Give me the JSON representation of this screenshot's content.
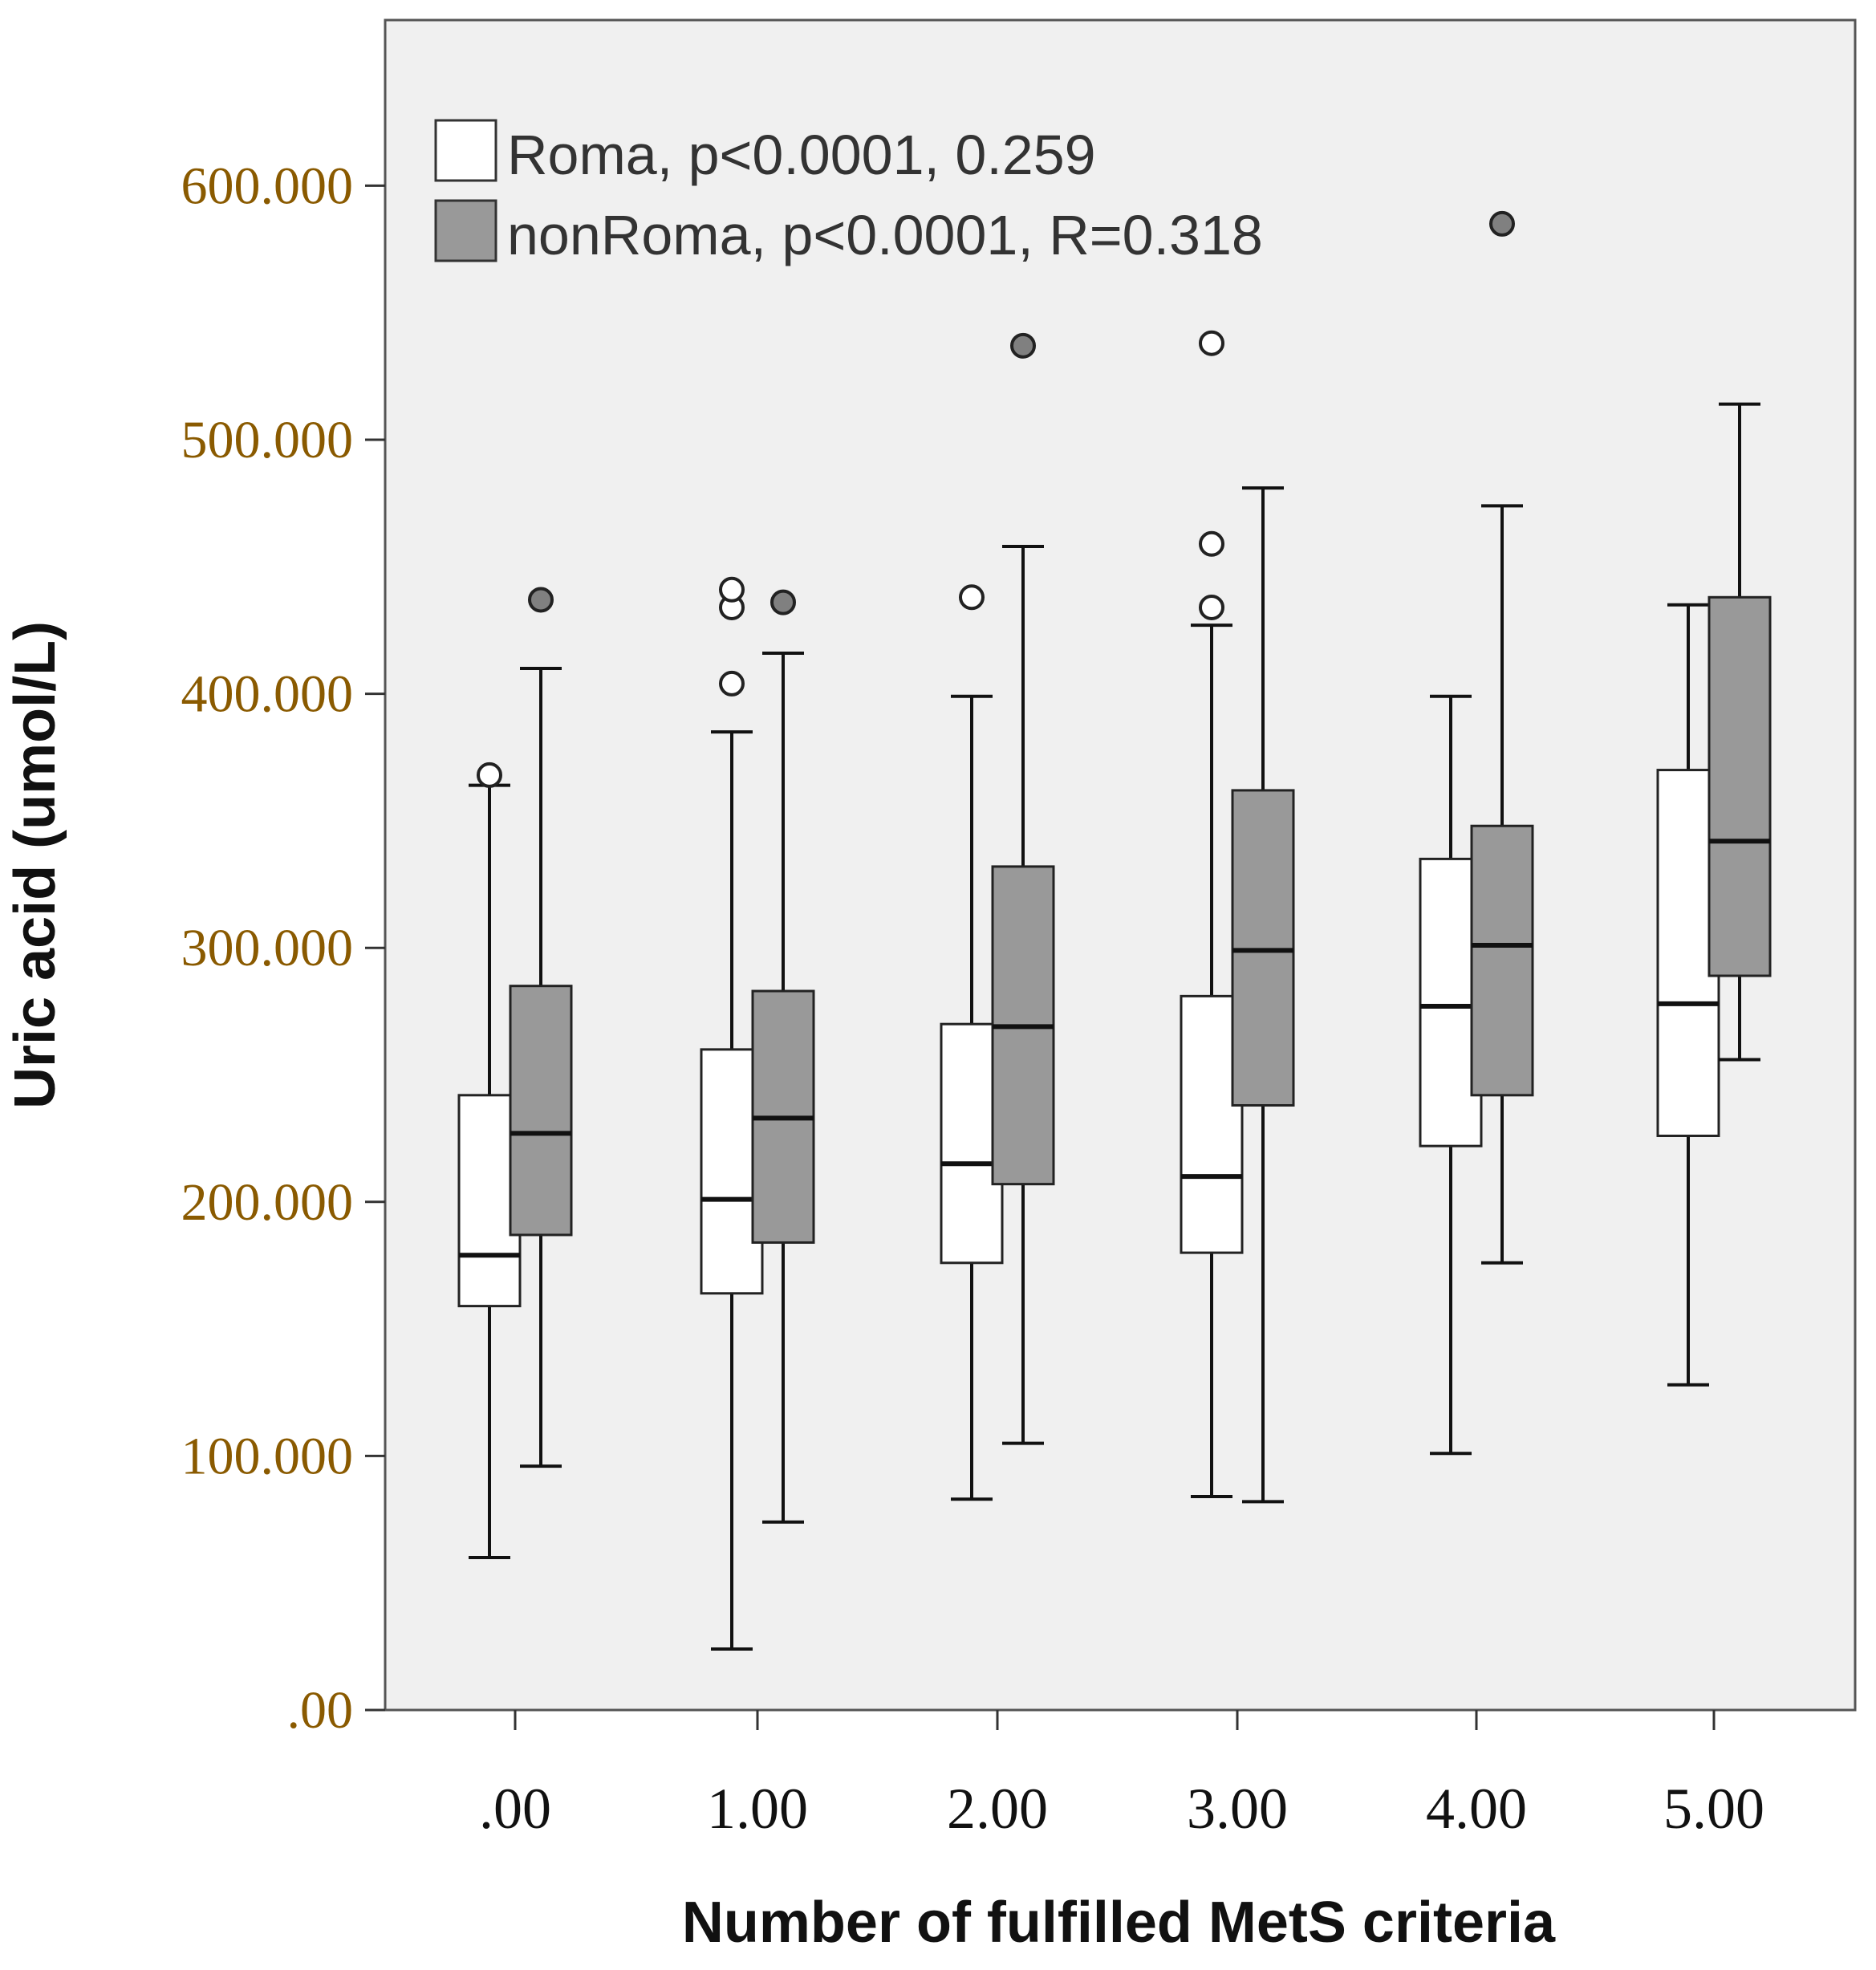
{
  "chart_data": {
    "type": "boxplot",
    "xlabel": "Number of fulfilled MetS criteria",
    "ylabel": "Uric acid (umol/L)",
    "ylim": [
      0,
      660
    ],
    "yticks": [
      0,
      100,
      200,
      300,
      400,
      500,
      600
    ],
    "ytick_labels": [
      ".00",
      "100.000",
      "200.000",
      "300.000",
      "400.000",
      "500.000",
      "600.000"
    ],
    "categories": [
      ".00",
      "1.00",
      "2.00",
      "3.00",
      "4.00",
      "5.00"
    ],
    "grid": false,
    "legend_position": "top-left",
    "plot_background": "#f0f0f0",
    "series": [
      {
        "name": "Roma, p<0.0001, 0.259",
        "color": "#ffffff",
        "outlier_style": "hollow",
        "boxes": [
          {
            "whisker_low": 60,
            "q1": 159,
            "median": 179,
            "q3": 242,
            "whisker_high": 364,
            "outliers": [
              368
            ]
          },
          {
            "whisker_low": 24,
            "q1": 164,
            "median": 201,
            "q3": 260,
            "whisker_high": 385,
            "outliers": [
              404,
              434,
              441
            ]
          },
          {
            "whisker_low": 83,
            "q1": 176,
            "median": 215,
            "q3": 270,
            "whisker_high": 399,
            "outliers": [
              438
            ]
          },
          {
            "whisker_low": 84,
            "q1": 180,
            "median": 210,
            "q3": 281,
            "whisker_high": 427,
            "outliers": [
              434,
              459,
              538
            ]
          },
          {
            "whisker_low": 101,
            "q1": 222,
            "median": 277,
            "q3": 335,
            "whisker_high": 399,
            "outliers": []
          },
          {
            "whisker_low": 128,
            "q1": 226,
            "median": 278,
            "q3": 370,
            "whisker_high": 435,
            "outliers": []
          }
        ]
      },
      {
        "name": "nonRoma, p<0.0001, R=0.318",
        "color": "#999999",
        "outlier_style": "filled",
        "boxes": [
          {
            "whisker_low": 96,
            "q1": 187,
            "median": 227,
            "q3": 285,
            "whisker_high": 410,
            "outliers": [
              437
            ]
          },
          {
            "whisker_low": 74,
            "q1": 184,
            "median": 233,
            "q3": 283,
            "whisker_high": 416,
            "outliers": [
              436
            ]
          },
          {
            "whisker_low": 105,
            "q1": 207,
            "median": 269,
            "q3": 332,
            "whisker_high": 458,
            "outliers": [
              537
            ]
          },
          {
            "whisker_low": 82,
            "q1": 238,
            "median": 299,
            "q3": 362,
            "whisker_high": 481,
            "outliers": []
          },
          {
            "whisker_low": 176,
            "q1": 242,
            "median": 301,
            "q3": 348,
            "whisker_high": 474,
            "outliers": [
              585
            ]
          },
          {
            "whisker_low": 256,
            "q1": 289,
            "median": 342,
            "q3": 438,
            "whisker_high": 514,
            "outliers": []
          }
        ]
      }
    ]
  }
}
